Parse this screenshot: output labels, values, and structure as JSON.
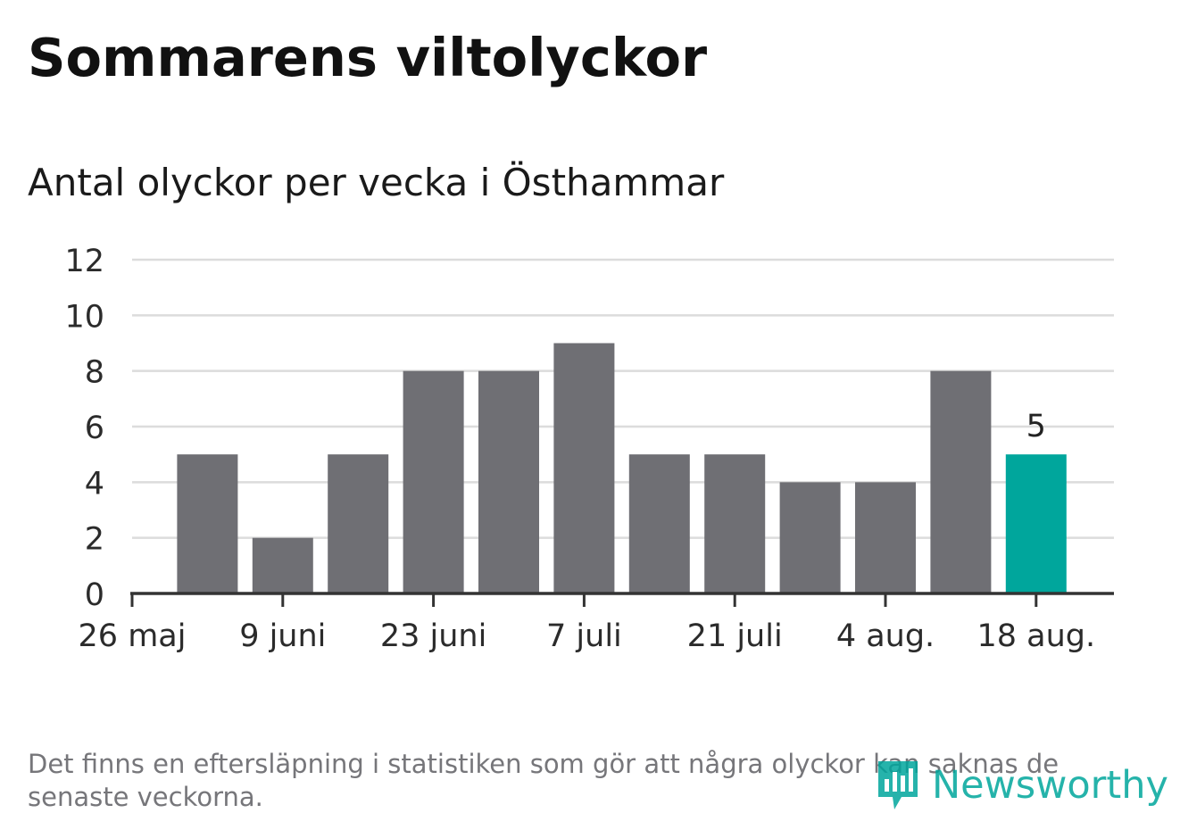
{
  "title": "Sommarens viltolyckor",
  "subtitle": "Antal olyckor per vecka i Östhammar",
  "footnote": "Det finns en eftersläpning i statistiken som gör att några olyckor kan saknas de senaste veckorna.",
  "brand": {
    "name": "Newsworthy",
    "icon": "newsworthy-logo-icon"
  },
  "colors": {
    "bar": "#6f6f74",
    "highlight": "#00a69c",
    "grid": "#dcdcdc",
    "axis": "#333333",
    "text": "#2b2b2b"
  },
  "chart_data": {
    "type": "bar",
    "title": "",
    "xlabel": "",
    "ylabel": "",
    "ylim": [
      0,
      12
    ],
    "y_ticks": [
      "0",
      "2",
      "4",
      "6",
      "8",
      "10",
      "12"
    ],
    "x_tick_labels": [
      "26 maj",
      "9 juni",
      "23 juni",
      "7 juli",
      "21 juli",
      "4 aug.",
      "18 aug."
    ],
    "grid": true,
    "legend": "none",
    "values": [
      5,
      2,
      5,
      8,
      8,
      9,
      5,
      5,
      4,
      4,
      8,
      5
    ],
    "highlight_index": 11,
    "data_labels": [
      {
        "index": 11,
        "text": "5"
      }
    ]
  }
}
